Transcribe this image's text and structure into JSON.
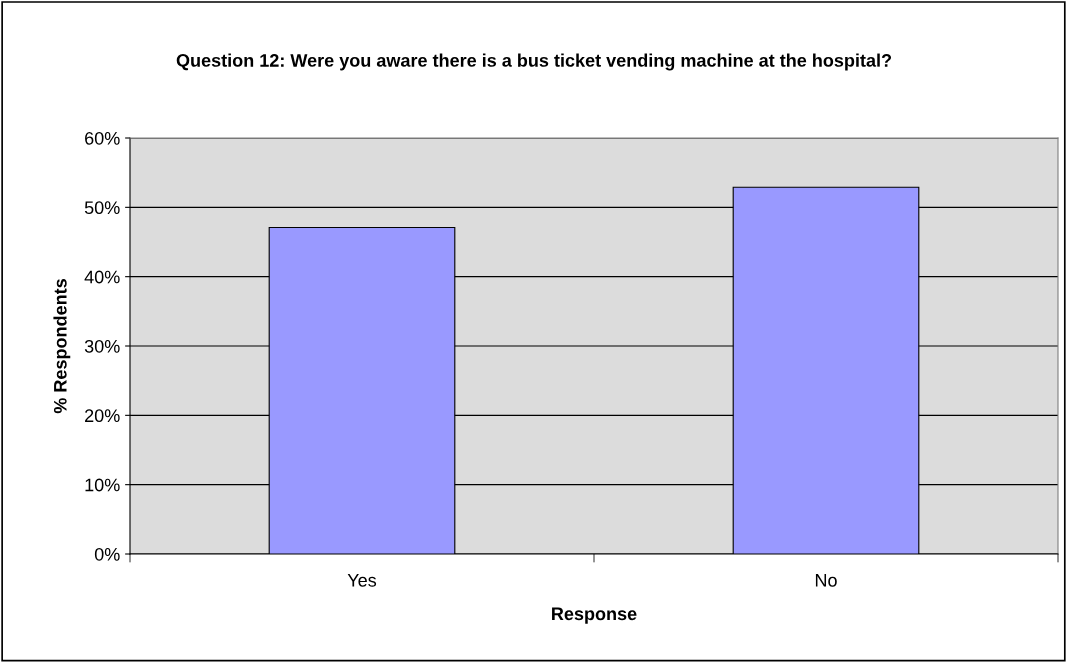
{
  "chart_data": {
    "type": "bar",
    "title": "Question 12: Were you aware there is a bus ticket vending machine at the hospital?",
    "xlabel": "Response",
    "ylabel": "% Respondents",
    "categories": [
      "Yes",
      "No"
    ],
    "values": [
      47.1,
      52.9
    ],
    "color": "#9999ff",
    "ylim": [
      0,
      60
    ],
    "yticks": [
      {
        "value": 0,
        "label": "0%"
      },
      {
        "value": 10,
        "label": "10%"
      },
      {
        "value": 20,
        "label": "20%"
      },
      {
        "value": 30,
        "label": "30%"
      },
      {
        "value": 40,
        "label": "40%"
      },
      {
        "value": 50,
        "label": "50%"
      },
      {
        "value": 60,
        "label": "60%"
      }
    ],
    "grid": "y",
    "legend": false
  }
}
